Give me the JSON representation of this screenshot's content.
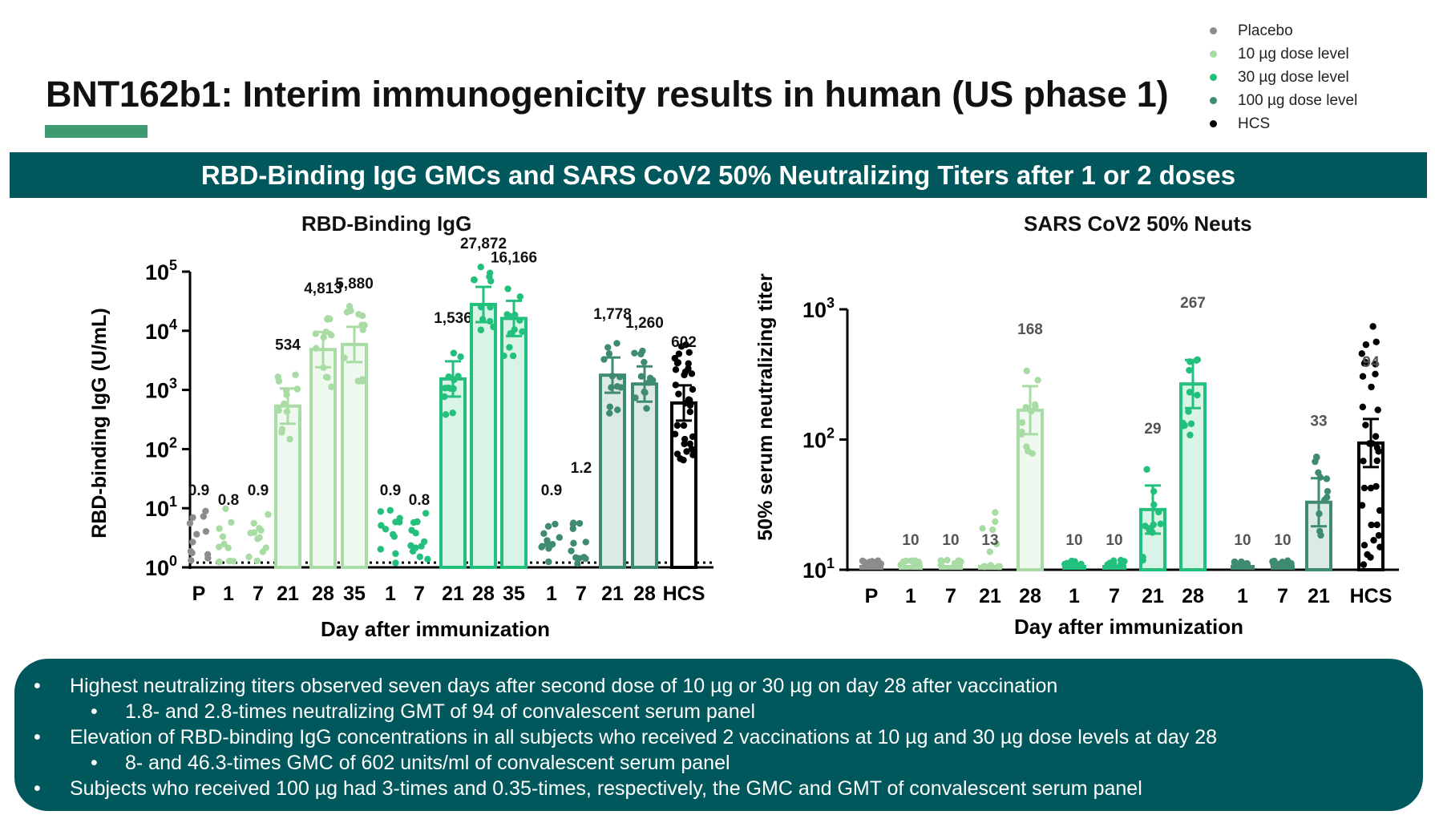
{
  "page": {
    "title": "BNT162b1:  Interim immunogenicity results in human (US phase 1)",
    "banner": "RBD-Binding IgG GMCs and SARS CoV2 50% Neutralizing Titers after 1 or 2 doses"
  },
  "legend": [
    {
      "label": "Placebo",
      "color": "#8c8c8c"
    },
    {
      "label": "10 µg dose level",
      "color": "#a8dca4"
    },
    {
      "label": "30 µg dose level",
      "color": "#22c07c"
    },
    {
      "label": "100 µg dose level",
      "color": "#3e8a72"
    },
    {
      "label": "HCS",
      "color": "#000000"
    }
  ],
  "chart_data": [
    {
      "type": "bar",
      "title": "RBD-Binding IgG",
      "xlabel": "Day after immunization",
      "ylabel": "RBD-binding IgG (U/mL)",
      "yscale": "log10",
      "ylim": [
        1,
        100000
      ],
      "yticks": [
        {
          "value": 1,
          "base": "10",
          "exp": "0"
        },
        {
          "value": 10,
          "base": "10",
          "exp": "1"
        },
        {
          "value": 100,
          "base": "10",
          "exp": "2"
        },
        {
          "value": 1000,
          "base": "10",
          "exp": "3"
        },
        {
          "value": 10000,
          "base": "10",
          "exp": "4"
        },
        {
          "value": 100000,
          "base": "10",
          "exp": "5"
        }
      ],
      "lloq": 1.2,
      "groups": [
        {
          "name": "Placebo",
          "color": "#8c8c8c",
          "bars": [
            {
              "day": "P",
              "gmc": 0.9,
              "label": "0.9"
            }
          ]
        },
        {
          "name": "10 µg dose level",
          "color": "#a8dca4",
          "bars": [
            {
              "day": "1",
              "gmc": 0.8,
              "label": "0.8"
            },
            {
              "day": "7",
              "gmc": 0.9,
              "label": "0.9"
            },
            {
              "day": "21",
              "gmc": 534,
              "label": "534"
            },
            {
              "day": "28",
              "gmc": 4813,
              "label": "4,813"
            },
            {
              "day": "35",
              "gmc": 5880,
              "label": "5,880"
            }
          ]
        },
        {
          "name": "30 µg dose level",
          "color": "#22c07c",
          "bars": [
            {
              "day": "1",
              "gmc": 0.9,
              "label": "0.9"
            },
            {
              "day": "7",
              "gmc": 0.8,
              "label": "0.8"
            },
            {
              "day": "21",
              "gmc": 1536,
              "label": "1,536"
            },
            {
              "day": "28",
              "gmc": 27872,
              "label": "27,872"
            },
            {
              "day": "35",
              "gmc": 16166,
              "label": "16,166"
            }
          ]
        },
        {
          "name": "100 µg dose level",
          "color": "#3e8a72",
          "bars": [
            {
              "day": "1",
              "gmc": 0.9,
              "label": "0.9"
            },
            {
              "day": "7",
              "gmc": 1.2,
              "label": "1.2"
            },
            {
              "day": "21",
              "gmc": 1778,
              "label": "1,778"
            },
            {
              "day": "28",
              "gmc": 1260,
              "label": "1,260"
            }
          ]
        },
        {
          "name": "HCS",
          "color": "#000000",
          "bars": [
            {
              "day": "HCS",
              "gmc": 602,
              "label": "602"
            }
          ]
        }
      ]
    },
    {
      "type": "bar",
      "title": "SARS CoV2 50% Neuts",
      "xlabel": "Day after immunization",
      "ylabel": "50% serum neutralizing titer",
      "yscale": "log10",
      "ylim": [
        10,
        1000
      ],
      "yticks": [
        {
          "value": 10,
          "base": "10",
          "exp": "1"
        },
        {
          "value": 100,
          "base": "10",
          "exp": "2"
        },
        {
          "value": 1000,
          "base": "10",
          "exp": "3"
        }
      ],
      "groups": [
        {
          "name": "Placebo",
          "color": "#8c8c8c",
          "bars": [
            {
              "day": "P",
              "gmt": 10,
              "label": ""
            }
          ]
        },
        {
          "name": "10 µg dose level",
          "color": "#a8dca4",
          "bars": [
            {
              "day": "1",
              "gmt": 10,
              "label": "10"
            },
            {
              "day": "7",
              "gmt": 10,
              "label": "10"
            },
            {
              "day": "21",
              "gmt": 13,
              "label": "13"
            },
            {
              "day": "28",
              "gmt": 168,
              "label": "168"
            }
          ]
        },
        {
          "name": "30 µg dose level",
          "color": "#22c07c",
          "bars": [
            {
              "day": "1",
              "gmt": 10,
              "label": "10"
            },
            {
              "day": "7",
              "gmt": 10,
              "label": "10"
            },
            {
              "day": "21",
              "gmt": 29,
              "label": "29"
            },
            {
              "day": "28",
              "gmt": 267,
              "label": "267"
            }
          ]
        },
        {
          "name": "100 µg dose level",
          "color": "#3e8a72",
          "bars": [
            {
              "day": "1",
              "gmt": 10,
              "label": "10"
            },
            {
              "day": "7",
              "gmt": 10,
              "label": "10"
            },
            {
              "day": "21",
              "gmt": 33,
              "label": "33"
            }
          ]
        },
        {
          "name": "HCS",
          "color": "#000000",
          "bars": [
            {
              "day": "HCS",
              "gmt": 94,
              "label": "94"
            }
          ]
        }
      ]
    }
  ],
  "summary": [
    {
      "level": 1,
      "text": "Highest neutralizing titers observed seven days after second dose of 10 µg or 30 µg on day 28 after vaccination"
    },
    {
      "level": 2,
      "text": "1.8- and 2.8-times neutralizing GMT of 94 of convalescent serum panel"
    },
    {
      "level": 1,
      "text": "Elevation of RBD-binding IgG concentrations in all subjects who received 2 vaccinations at 10 µg and 30 µg dose levels at day 28"
    },
    {
      "level": 2,
      "text": "8- and 46.3-times GMC of 602 units/ml of convalescent serum panel"
    },
    {
      "level": 1,
      "text": "Subjects who received 100 µg had 3-times and 0.35-times, respectively, the GMC and GMT of convalescent serum panel"
    }
  ]
}
